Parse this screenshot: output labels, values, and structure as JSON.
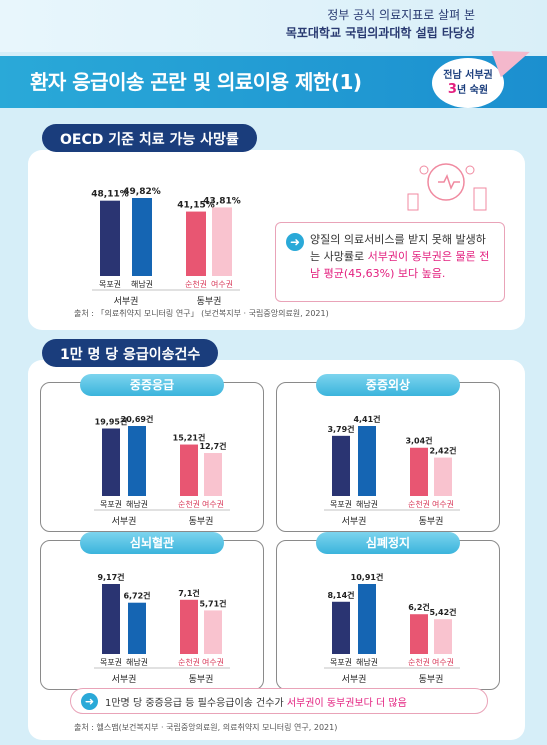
{
  "header": {
    "line1": "정부 공식 의료지표로 살펴 본",
    "line2": "목포대학교 국립의과대학 설립 타당성",
    "title": "환자 응급이송 곤란 및 의료이용 제한(1)",
    "badge_line1": "전남 서부권",
    "badge_num": "3",
    "badge_line2": "년 숙원"
  },
  "section1": {
    "label": "OECD 기준 치료 가능 사망률",
    "info_pre": "양질의 의료서비스를 받지 못해 발생하는 사망률로 ",
    "info_hl": "서부권이 동부권은 물론 전남 평균(45,63%) 보다 높음.",
    "source": "출처 : 「의료취약지 모니터링 연구」 (보건복지부 · 국립중앙의료원, 2021)"
  },
  "section2": {
    "label": "1만 명 당 응급이송건수",
    "note_pre": "1만명 당 중증응급 등 필수응급이송 건수가 ",
    "note_hl": "서부권이 동부권보다 더 많음",
    "source": "출처 : 헬스맵(보건복지부 · 국립중앙의료원, 의료취약지 모니터링 연구, 2021)"
  },
  "colors": {
    "navy": "#2a3472",
    "blue": "#1565b3",
    "red": "#e85672",
    "pink": "#f9c3cf"
  },
  "chart_data": [
    {
      "type": "bar",
      "title": "OECD 기준 치료 가능 사망률",
      "categories": [
        "목포권",
        "해남권",
        "순천권",
        "여수권"
      ],
      "groups": [
        "서부권",
        "서부권",
        "동부권",
        "동부권"
      ],
      "values": [
        48.11,
        49.82,
        41.15,
        43.81
      ],
      "labels": [
        "48,11%",
        "49,82%",
        "41,15%",
        "43,81%"
      ]
    },
    {
      "type": "bar",
      "title": "중증응급",
      "categories": [
        "목포권",
        "해남권",
        "순천권",
        "여수권"
      ],
      "groups": [
        "서부권",
        "서부권",
        "동부권",
        "동부권"
      ],
      "values": [
        19.95,
        20.69,
        15.21,
        12.7
      ],
      "labels": [
        "19,95건",
        "20,69건",
        "15,21건",
        "12,7건"
      ]
    },
    {
      "type": "bar",
      "title": "중증외상",
      "categories": [
        "목포권",
        "해남권",
        "순천권",
        "여수권"
      ],
      "groups": [
        "서부권",
        "서부권",
        "동부권",
        "동부권"
      ],
      "values": [
        3.79,
        4.41,
        3.04,
        2.42
      ],
      "labels": [
        "3,79건",
        "4,41건",
        "3,04건",
        "2,42건"
      ]
    },
    {
      "type": "bar",
      "title": "심뇌혈관",
      "categories": [
        "목포권",
        "해남권",
        "순천권",
        "여수권"
      ],
      "groups": [
        "서부권",
        "서부권",
        "동부권",
        "동부권"
      ],
      "values": [
        9.17,
        6.72,
        7.1,
        5.71
      ],
      "labels": [
        "9,17건",
        "6,72건",
        "7,1건",
        "5,71건"
      ]
    },
    {
      "type": "bar",
      "title": "심폐정지",
      "categories": [
        "목포권",
        "해남권",
        "순천권",
        "여수권"
      ],
      "groups": [
        "서부권",
        "서부권",
        "동부권",
        "동부권"
      ],
      "values": [
        8.14,
        10.91,
        6.2,
        5.42
      ],
      "labels": [
        "8,14건",
        "10,91건",
        "6,2건",
        "5,42건"
      ]
    }
  ]
}
